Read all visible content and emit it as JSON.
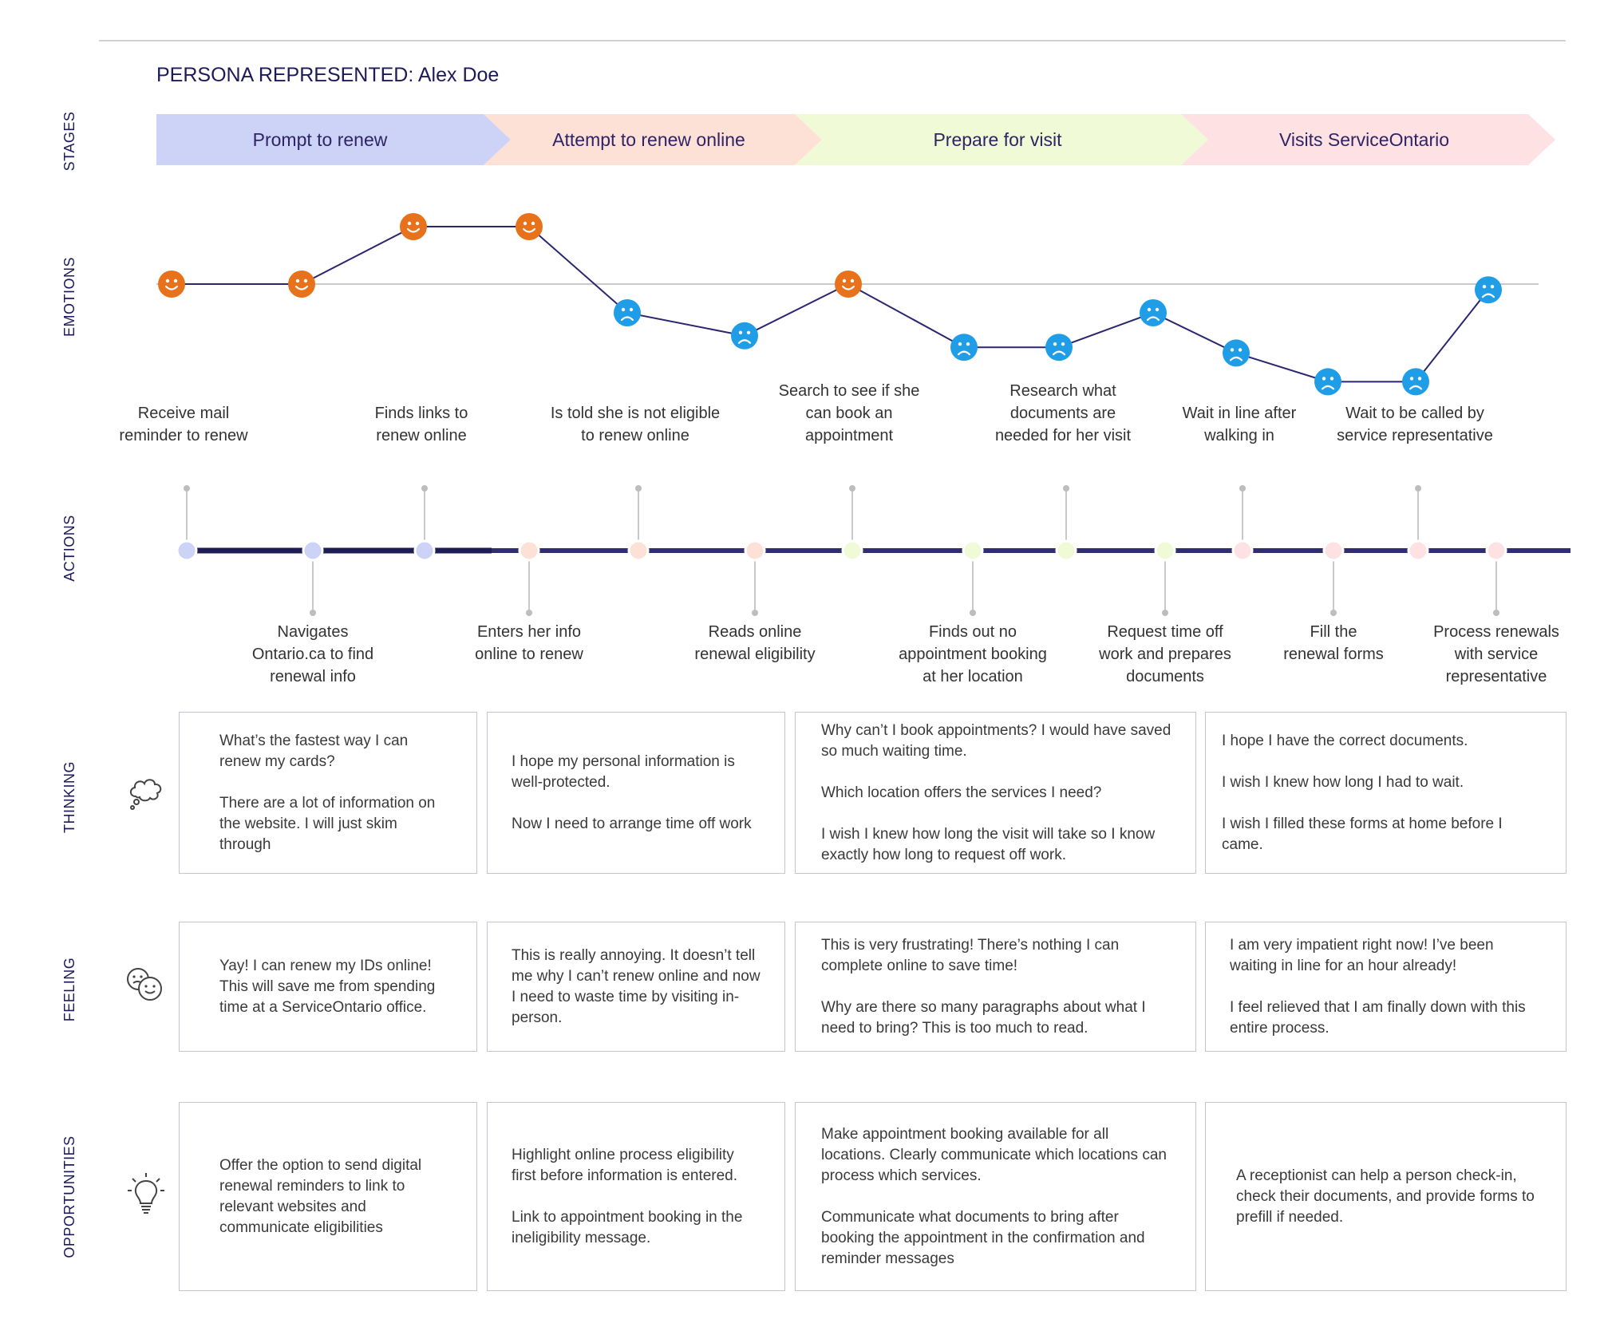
{
  "persona": "PERSONA REPRESENTED: Alex Doe",
  "row_labels": {
    "stages": "STAGES",
    "emotions": "EMOTIONS",
    "actions": "ACTIONS",
    "thinking": "THINKING",
    "feeling": "FEELING",
    "opportunities": "OPPORTUNITIES"
  },
  "stages": [
    {
      "label": "Prompt to renew",
      "color": "#cdd3f7"
    },
    {
      "label": "Attempt to renew online",
      "color": "#fde0d6"
    },
    {
      "label": "Prepare for visit",
      "color": "#f1fad6"
    },
    {
      "label": "Visits ServiceOntario",
      "color": "#fde1e3"
    }
  ],
  "colors": {
    "happy": "#e8711c",
    "sad": "#1f9de6",
    "line": "#2b2670",
    "timeline": "#302e6e",
    "baseline": "#b8b8b8"
  },
  "emotions": [
    {
      "mood": "happy",
      "level": 0
    },
    {
      "mood": "happy",
      "level": 0
    },
    {
      "mood": "happy",
      "level": 1
    },
    {
      "mood": "happy",
      "level": 1
    },
    {
      "mood": "sad",
      "level": -0.5
    },
    {
      "mood": "sad",
      "level": -0.9
    },
    {
      "mood": "happy",
      "level": 0
    },
    {
      "mood": "sad",
      "level": -1.1
    },
    {
      "mood": "sad",
      "level": -1.1
    },
    {
      "mood": "sad",
      "level": -0.5
    },
    {
      "mood": "sad",
      "level": -1.2
    },
    {
      "mood": "sad",
      "level": -1.7
    },
    {
      "mood": "sad",
      "level": -1.7
    },
    {
      "mood": "sad",
      "level": -0.1
    }
  ],
  "actions": [
    {
      "stage": 0,
      "pos": "top",
      "lines": [
        "Receive mail",
        "reminder to renew"
      ]
    },
    {
      "stage": 0,
      "pos": "bottom",
      "lines": [
        "Navigates",
        "Ontario.ca to find",
        "renewal info"
      ]
    },
    {
      "stage": 0,
      "pos": "top",
      "lines": [
        "Finds links to",
        "renew online"
      ]
    },
    {
      "stage": 1,
      "pos": "bottom",
      "lines": [
        "Enters her info",
        "online to renew"
      ]
    },
    {
      "stage": 1,
      "pos": "top",
      "lines": [
        "Is told she is not eligible",
        "to renew online"
      ]
    },
    {
      "stage": 1,
      "pos": "bottom",
      "lines": [
        "Reads online",
        "renewal eligibility"
      ]
    },
    {
      "stage": 2,
      "pos": "top",
      "lines": [
        "Search to see if she",
        "can book an",
        "appointment"
      ]
    },
    {
      "stage": 2,
      "pos": "bottom",
      "lines": [
        "Finds out no",
        "appointment booking",
        "at her location"
      ]
    },
    {
      "stage": 2,
      "pos": "top",
      "lines": [
        "Research what",
        "documents are",
        "needed for her visit"
      ]
    },
    {
      "stage": 2,
      "pos": "bottom",
      "lines": [
        "Request time off",
        "work and prepares",
        "documents"
      ]
    },
    {
      "stage": 3,
      "pos": "top",
      "lines": [
        "Wait in line after",
        "walking in"
      ]
    },
    {
      "stage": 3,
      "pos": "bottom",
      "lines": [
        "Fill the",
        "renewal forms"
      ]
    },
    {
      "stage": 3,
      "pos": "top",
      "lines": [
        "Wait to be called by",
        "service representative"
      ]
    },
    {
      "stage": 3,
      "pos": "bottom",
      "lines": [
        "Process renewals",
        "with service",
        "representative"
      ]
    }
  ],
  "thinking": [
    [
      "What’s the fastest way I can renew my cards?",
      "There are a lot of information on the website. I will just skim through"
    ],
    [
      "I hope my personal information is well-protected.",
      "Now I need to arrange time off work"
    ],
    [
      "Why can’t I book appointments? I would have saved so much waiting time.",
      "Which location offers the services I need?",
      "I wish I knew how long the visit will take so I know exactly how long to request off work."
    ],
    [
      "I hope I have the correct documents.",
      "I wish I knew how long I had to wait.",
      "I wish I filled these forms at home before I came."
    ]
  ],
  "feeling": [
    [
      "Yay! I can renew my IDs online! This will save me from spending time at a ServiceOntario office."
    ],
    [
      "This is really annoying. It doesn’t tell me why I can’t renew online and now I need to waste time by visiting in-person."
    ],
    [
      "This is very frustrating! There’s nothing I can complete online to save time!",
      "Why are there so many paragraphs about what I need to bring? This is too much to read."
    ],
    [
      "I am very impatient right now! I’ve been waiting in line for an hour already!",
      "I feel relieved that I am finally down with this entire process."
    ]
  ],
  "opportunities": [
    [
      "Offer the option to send digital renewal reminders to link to relevant websites and communicate eligibilities"
    ],
    [
      "Highlight online process eligibility first before information is entered.",
      "Link to appointment booking in the ineligibility message."
    ],
    [
      "Make appointment booking available for all locations. Clearly communicate which locations can process which services.",
      "Communicate what documents to bring after booking the appointment in the confirmation and reminder messages"
    ],
    [
      "A receptionist can help a person check-in, check their documents, and provide forms to prefill if needed."
    ]
  ],
  "icons": {
    "thinking": "thought-cloud-icon",
    "feeling": "mixed-faces-icon",
    "opportunities": "lightbulb-icon"
  }
}
